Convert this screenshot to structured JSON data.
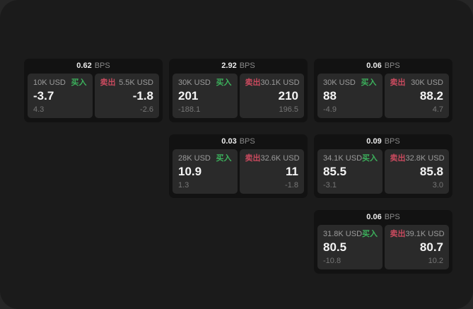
{
  "theme": {
    "canvas_bg": "#262626",
    "surface_bg": "#1b1b1b",
    "card_bg": "#121212",
    "panel_bg": "#2a2a2a",
    "buy_green": "#3cb15c",
    "sell_red": "#c94a5e",
    "value_white": "#f4f4f4",
    "muted_gray": "#9b9b9b"
  },
  "labels": {
    "bps_unit": "BPS",
    "buy": "买入",
    "sell": "卖出"
  },
  "cards": [
    {
      "bps": "0.62",
      "buy": {
        "amount": "10K USD",
        "price": "-3.7",
        "change": "4.3"
      },
      "sell": {
        "amount": "5.5K USD",
        "price": "-1.8",
        "change": "-2.6"
      }
    },
    {
      "bps": "2.92",
      "buy": {
        "amount": "30K USD",
        "price": "201",
        "change": "-188.1"
      },
      "sell": {
        "amount": "30.1K USD",
        "price": "210",
        "change": "196.5"
      }
    },
    {
      "bps": "0.06",
      "buy": {
        "amount": "30K USD",
        "price": "88",
        "change": "-4.9"
      },
      "sell": {
        "amount": "30K USD",
        "price": "88.2",
        "change": "4.7"
      }
    },
    {
      "bps": "0.03",
      "buy": {
        "amount": "28K USD",
        "price": "10.9",
        "change": "1.3"
      },
      "sell": {
        "amount": "32.6K USD",
        "price": "11",
        "change": "-1.8"
      }
    },
    {
      "bps": "0.09",
      "buy": {
        "amount": "34.1K USD",
        "price": "85.5",
        "change": "-3.1"
      },
      "sell": {
        "amount": "32.8K USD",
        "price": "85.8",
        "change": "3.0"
      }
    },
    {
      "bps": "0.06",
      "buy": {
        "amount": "31.8K USD",
        "price": "80.5",
        "change": "-10.8"
      },
      "sell": {
        "amount": "39.1K USD",
        "price": "80.7",
        "change": "10.2"
      }
    }
  ]
}
